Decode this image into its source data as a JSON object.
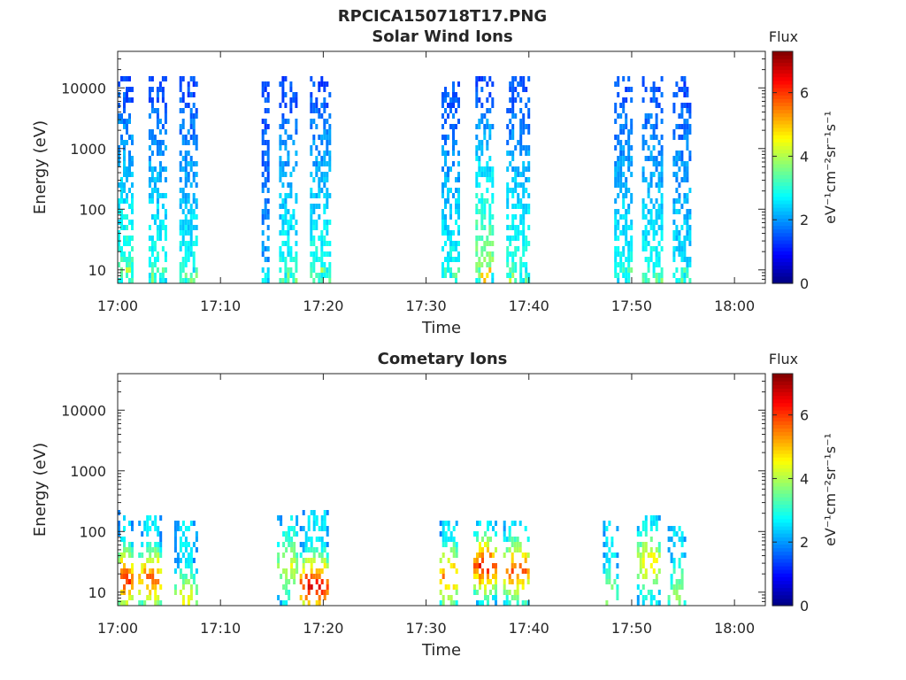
{
  "figure": {
    "filename": "RPCICA150718T17.PNG"
  },
  "colorbar": {
    "title": "Flux",
    "label": "eV⁻¹cm⁻²sr⁻¹s⁻¹",
    "ticks": [
      "0",
      "2",
      "4",
      "6"
    ],
    "range": [
      0,
      7.3
    ],
    "colormap": "jet"
  },
  "chart_data": [
    {
      "type": "heatmap",
      "title": "Solar Wind Ions",
      "xlabel": "Time",
      "ylabel": "Energy (eV)",
      "xlim": [
        "17:00",
        "18:03"
      ],
      "ylim": [
        6,
        40000
      ],
      "yscale": "log",
      "xticks": [
        "17:00",
        "17:10",
        "17:20",
        "17:30",
        "17:40",
        "17:50",
        "18:00"
      ],
      "yticks": [
        "10",
        "100",
        "1000",
        "10000"
      ],
      "grid": false,
      "colorbar": true,
      "bursts": [
        {
          "t_start": "17:00",
          "t_end": "17:01.3",
          "e_max": 15000,
          "low_flux_max": 4.4
        },
        {
          "t_start": "17:03",
          "t_end": "17:04.6",
          "e_max": 15000,
          "low_flux_max": 4.0
        },
        {
          "t_start": "17:06",
          "t_end": "17:07.6",
          "e_max": 13000,
          "low_flux_max": 3.8
        },
        {
          "t_start": "17:14",
          "t_end": "17:14.6",
          "e_max": 11000,
          "low_flux_max": 2.5
        },
        {
          "t_start": "17:15.7",
          "t_end": "17:17.4",
          "e_max": 15000,
          "low_flux_max": 3.8
        },
        {
          "t_start": "17:18.7",
          "t_end": "17:20.7",
          "e_max": 15000,
          "low_flux_max": 4.0
        },
        {
          "t_start": "17:31.5",
          "t_end": "17:33.2",
          "e_max": 15000,
          "low_flux_max": 3.8
        },
        {
          "t_start": "17:34.8",
          "t_end": "17:36.6",
          "e_max": 15000,
          "low_flux_max": 5.4
        },
        {
          "t_start": "17:37.8",
          "t_end": "17:39.9",
          "e_max": 15000,
          "low_flux_max": 4.2
        },
        {
          "t_start": "17:48.3",
          "t_end": "17:49.9",
          "e_max": 15000,
          "low_flux_max": 3.8
        },
        {
          "t_start": "17:51",
          "t_end": "17:53",
          "e_max": 15000,
          "low_flux_max": 3.8
        },
        {
          "t_start": "17:54",
          "t_end": "17:55.7",
          "e_max": 15000,
          "low_flux_max": 3.4
        }
      ]
    },
    {
      "type": "heatmap",
      "title": "Cometary Ions",
      "xlabel": "Time",
      "ylabel": "Energy (eV)",
      "xlim": [
        "17:00",
        "18:03"
      ],
      "ylim": [
        6,
        40000
      ],
      "yscale": "log",
      "xticks": [
        "17:00",
        "17:10",
        "17:20",
        "17:30",
        "17:40",
        "17:50",
        "18:00"
      ],
      "yticks": [
        "10",
        "100",
        "1000",
        "10000"
      ],
      "grid": false,
      "colorbar": true,
      "bursts": [
        {
          "t_start": "17:00",
          "t_end": "17:01.3",
          "e_max": 200,
          "peak_energy": 18,
          "peak_flux": 6.2
        },
        {
          "t_start": "17:02",
          "t_end": "17:04.3",
          "e_max": 170,
          "peak_energy": 18,
          "peak_flux": 5.8
        },
        {
          "t_start": "17:05.5",
          "t_end": "17:07.6",
          "e_max": 150,
          "peak_energy": 8,
          "peak_flux": 4.6
        },
        {
          "t_start": "17:15.5",
          "t_end": "17:17.4",
          "e_max": 170,
          "peak_energy": 30,
          "peak_flux": 4.4
        },
        {
          "t_start": "17:17.7",
          "t_end": "17:20.5",
          "e_max": 200,
          "peak_energy": 14,
          "peak_flux": 6.6
        },
        {
          "t_start": "17:31.3",
          "t_end": "17:32.9",
          "e_max": 140,
          "peak_energy": 20,
          "peak_flux": 5.6
        },
        {
          "t_start": "17:34.6",
          "t_end": "17:36.7",
          "e_max": 140,
          "peak_energy": 30,
          "peak_flux": 6.4
        },
        {
          "t_start": "17:37.5",
          "t_end": "17:40",
          "e_max": 140,
          "peak_energy": 25,
          "peak_flux": 5.8
        },
        {
          "t_start": "17:47.2",
          "t_end": "17:48.6",
          "e_max": 130,
          "peak_energy": 9,
          "peak_flux": 3.8
        },
        {
          "t_start": "17:50.5",
          "t_end": "17:52.8",
          "e_max": 170,
          "peak_energy": 35,
          "peak_flux": 4.8
        },
        {
          "t_start": "17:53.5",
          "t_end": "17:55.3",
          "e_max": 120,
          "peak_energy": 10,
          "peak_flux": 4.0
        }
      ]
    }
  ]
}
